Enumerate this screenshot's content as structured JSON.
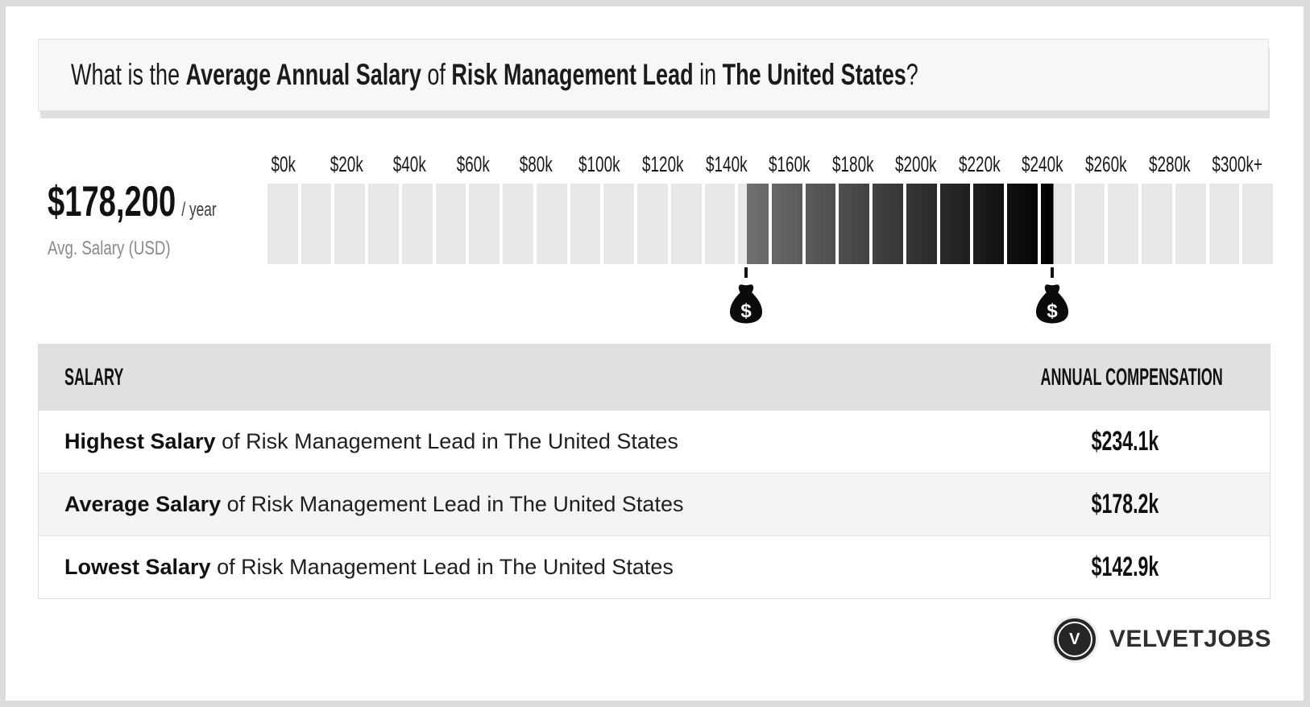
{
  "header": {
    "title_segments": [
      {
        "text": "What is the ",
        "bold": false
      },
      {
        "text": "Average Annual Salary",
        "bold": true
      },
      {
        "text": " of ",
        "bold": false
      },
      {
        "text": "Risk Management Lead",
        "bold": true
      },
      {
        "text": " in ",
        "bold": false
      },
      {
        "text": "The United States",
        "bold": true
      },
      {
        "text": "?",
        "bold": false
      }
    ]
  },
  "summary": {
    "amount": "$178,200",
    "per_label": "/ year",
    "caption": "Avg. Salary (USD)"
  },
  "chart_data": {
    "type": "bar",
    "title": "Salary range scale for Risk Management Lead in The United States",
    "x_axis_labels": [
      "$0k",
      "$20k",
      "$40k",
      "$60k",
      "$80k",
      "$100k",
      "$120k",
      "$140k",
      "$160k",
      "$180k",
      "$200k",
      "$220k",
      "$240k",
      "$260k",
      "$280k",
      "$300k+"
    ],
    "axis_range_k": [
      0,
      300
    ],
    "segment_size_k": 10,
    "range": {
      "low_k": 142.9,
      "high_k": 234.1,
      "average_k": 178.2
    },
    "markers": [
      {
        "name": "lowest",
        "value_k": 142.9,
        "label": "$"
      },
      {
        "name": "highest",
        "value_k": 234.1,
        "label": "$"
      }
    ],
    "colors": {
      "track": "#e8e8e8",
      "range_start": "#707070",
      "range_end": "#000000"
    }
  },
  "table": {
    "headers": [
      "SALARY",
      "ANNUAL COMPENSATION"
    ],
    "rows": [
      {
        "term": "Highest Salary",
        "rest": " of Risk Management Lead in The United States",
        "value": "$234.1k"
      },
      {
        "term": "Average Salary",
        "rest": " of Risk Management Lead in The United States",
        "value": "$178.2k"
      },
      {
        "term": "Lowest Salary",
        "rest": " of Risk Management Lead in The United States",
        "value": "$142.9k"
      }
    ]
  },
  "footer": {
    "logo_letter": "V",
    "brand": "VELVETJOBS"
  }
}
